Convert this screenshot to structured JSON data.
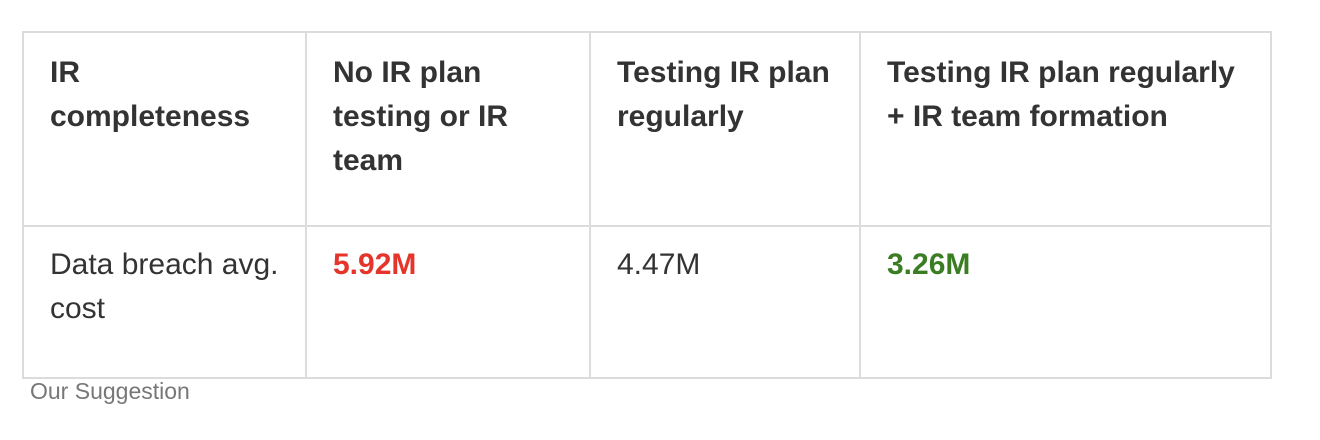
{
  "table": {
    "headers": [
      "IR completeness",
      "No IR plan testing or IR team",
      "Testing IR plan regularly",
      "Testing IR plan regularly + IR team formation"
    ],
    "rows": [
      {
        "label": "Data breach avg. cost",
        "values": [
          "5.92M",
          "4.47M",
          "3.26M"
        ]
      }
    ]
  },
  "colors": {
    "worst": "#e5352b",
    "best": "#3a7d23",
    "neutral": "#333333"
  },
  "caption": "Our Suggestion"
}
